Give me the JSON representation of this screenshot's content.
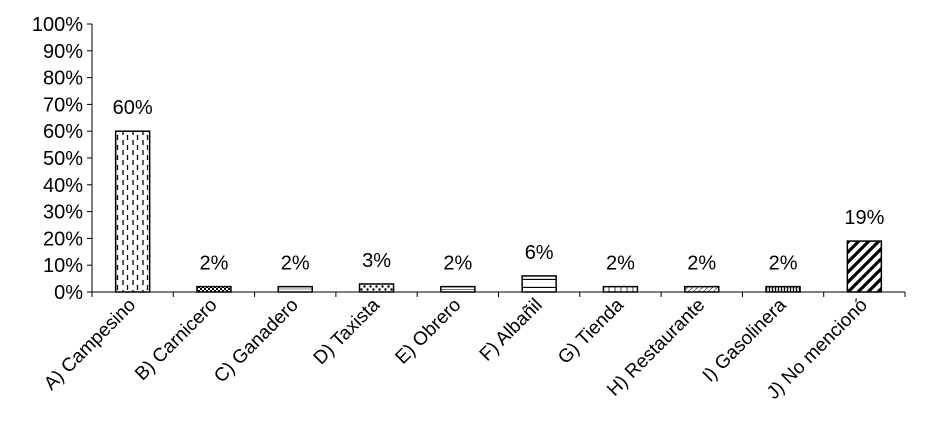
{
  "chart_data": {
    "type": "bar",
    "categories": [
      "A) Campesino",
      "B) Carnicero",
      "C) Ganadero",
      "D) Taxista",
      "E) Obrero",
      "F) Albañil",
      "G) Tienda",
      "H) Restaurante",
      "I) Gasolinera",
      "J) No mencionó"
    ],
    "values": [
      60,
      2,
      2,
      3,
      2,
      6,
      2,
      2,
      2,
      19
    ],
    "value_labels": [
      "60%",
      "2%",
      "2%",
      "3%",
      "2%",
      "6%",
      "2%",
      "2%",
      "2%",
      "19%"
    ],
    "ylim": [
      0,
      100
    ],
    "yticks": [
      "0%",
      "10%",
      "20%",
      "30%",
      "40%",
      "50%",
      "60%",
      "70%",
      "80%",
      "90%",
      "100%"
    ],
    "grid": false,
    "legend": "none",
    "bar_fill": "#ffffff",
    "bar_stroke": "#000000",
    "patterns": [
      "dashed-vertical",
      "dense-dots",
      "horizontal-stripes-light",
      "dots",
      "horizontal-lines",
      "horizontal-line",
      "vertical-lines",
      "diagonal-light",
      "vertical-dense",
      "diagonal-bold"
    ]
  }
}
